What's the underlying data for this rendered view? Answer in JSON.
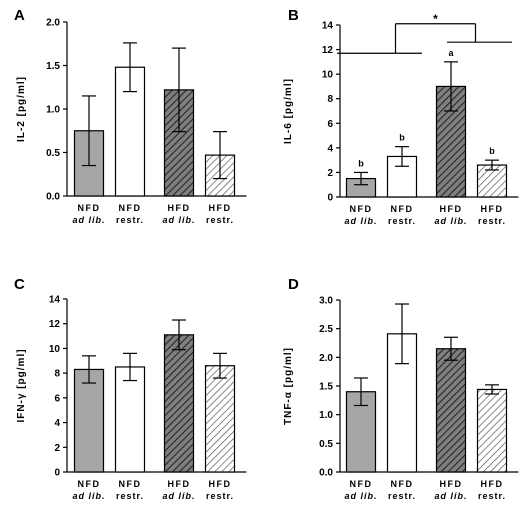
{
  "colors": {
    "nfd_ad_lib_fill": "#a6a6a6",
    "nfd_restr_fill": "#ffffff",
    "hfd_ad_lib_fill": "#7f7f7f",
    "hfd_ad_lib_hatch": "#262626",
    "hfd_restr_hatch": "#595959"
  },
  "chart_data": [
    {
      "panel": "A",
      "type": "bar",
      "ylabel": "IL-2 [pg/ml]",
      "ylim": [
        0,
        2.0
      ],
      "yticks": [
        "0.0",
        "0.5",
        "1.0",
        "1.5",
        "2.0"
      ],
      "categories": [
        {
          "line1": "NFD",
          "line2": "ad lib.",
          "italic2": true
        },
        {
          "line1": "NFD",
          "line2": "restr.",
          "italic2": false
        },
        {
          "line1": "HFD",
          "line2": "ad lib.",
          "italic2": true
        },
        {
          "line1": "HFD",
          "line2": "restr.",
          "italic2": false
        }
      ],
      "values": [
        0.75,
        1.48,
        1.22,
        0.47
      ],
      "error": [
        0.4,
        0.28,
        0.48,
        0.27
      ],
      "grid": false
    },
    {
      "panel": "B",
      "type": "bar",
      "ylabel": "IL-6 [pg/ml]",
      "ylim": [
        0,
        14
      ],
      "yticks": [
        "0",
        "2",
        "4",
        "6",
        "8",
        "10",
        "12",
        "14"
      ],
      "categories": [
        {
          "line1": "NFD",
          "line2": "ad lib.",
          "italic2": true
        },
        {
          "line1": "NFD",
          "line2": "restr.",
          "italic2": false
        },
        {
          "line1": "HFD",
          "line2": "ad lib.",
          "italic2": true
        },
        {
          "line1": "HFD",
          "line2": "restr.",
          "italic2": false
        }
      ],
      "values": [
        1.5,
        3.3,
        9.0,
        2.6
      ],
      "error": [
        0.5,
        0.8,
        2.0,
        0.4
      ],
      "annotations": [
        "b",
        "b",
        "a",
        "b"
      ],
      "significance": "*",
      "grid": false
    },
    {
      "panel": "C",
      "type": "bar",
      "ylabel": "IFN-γ [pg/ml]",
      "ylim": [
        0,
        14
      ],
      "yticks": [
        "0",
        "2",
        "4",
        "6",
        "8",
        "10",
        "12",
        "14"
      ],
      "categories": [
        {
          "line1": "NFD",
          "line2": "ad lib.",
          "italic2": true
        },
        {
          "line1": "NFD",
          "line2": "restr.",
          "italic2": false
        },
        {
          "line1": "HFD",
          "line2": "ad lib.",
          "italic2": true
        },
        {
          "line1": "HFD",
          "line2": "restr.",
          "italic2": false
        }
      ],
      "values": [
        8.3,
        8.5,
        11.1,
        8.6
      ],
      "error": [
        1.1,
        1.1,
        1.2,
        1.0
      ],
      "grid": false
    },
    {
      "panel": "D",
      "type": "bar",
      "ylabel": "TNF-α [pg/ml]",
      "ylim": [
        0,
        3.0
      ],
      "yticks": [
        "0.0",
        "0.5",
        "1.0",
        "1.5",
        "2.0",
        "2.5",
        "3.0"
      ],
      "categories": [
        {
          "line1": "NFD",
          "line2": "ad lib.",
          "italic2": true
        },
        {
          "line1": "NFD",
          "line2": "restr.",
          "italic2": false
        },
        {
          "line1": "HFD",
          "line2": "ad lib.",
          "italic2": true
        },
        {
          "line1": "HFD",
          "line2": "restr.",
          "italic2": false
        }
      ],
      "values": [
        1.4,
        2.41,
        2.15,
        1.44
      ],
      "error": [
        0.24,
        0.52,
        0.2,
        0.08
      ],
      "grid": false
    }
  ]
}
